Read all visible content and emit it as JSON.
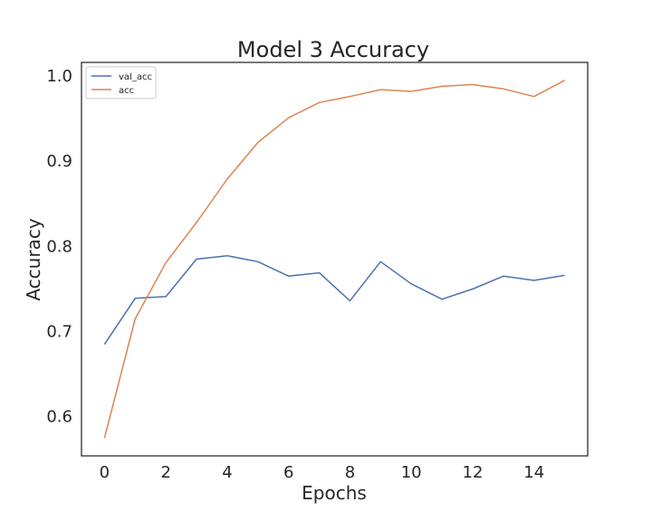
{
  "chart_data": {
    "type": "line",
    "title": "Model 3 Accuracy",
    "xlabel": "Epochs",
    "ylabel": "Accuracy",
    "xlim": [
      -0.75,
      15.75
    ],
    "ylim": [
      0.554,
      1.016
    ],
    "xticks": [
      0,
      2,
      4,
      6,
      8,
      10,
      12,
      14
    ],
    "yticks": [
      0.6,
      0.7,
      0.8,
      0.9,
      1.0
    ],
    "ytick_labels": [
      "0.6",
      "0.7",
      "0.8",
      "0.9",
      "1.0"
    ],
    "grid": false,
    "legend_position": "top-left",
    "x": [
      0,
      1,
      2,
      3,
      4,
      5,
      6,
      7,
      8,
      9,
      10,
      11,
      12,
      13,
      14,
      15
    ],
    "series": [
      {
        "name": "val_acc",
        "color": "#4c72b0",
        "values": [
          0.685,
          0.739,
          0.741,
          0.785,
          0.789,
          0.782,
          0.765,
          0.769,
          0.736,
          0.782,
          0.756,
          0.738,
          0.75,
          0.765,
          0.76,
          0.766
        ]
      },
      {
        "name": "acc",
        "color": "#dd8452",
        "values": [
          0.575,
          0.715,
          0.781,
          0.828,
          0.879,
          0.922,
          0.951,
          0.969,
          0.976,
          0.984,
          0.982,
          0.988,
          0.99,
          0.985,
          0.976,
          0.995
        ]
      }
    ]
  }
}
